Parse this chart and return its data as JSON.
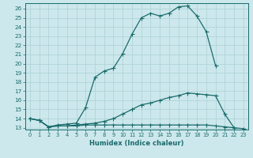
{
  "xlabel": "Humidex (Indice chaleur)",
  "bg_color": "#cce8ec",
  "grid_color": "#b0d4d8",
  "line_color": "#1a6b6b",
  "xlim": [
    -0.5,
    23.5
  ],
  "ylim": [
    12.8,
    26.6
  ],
  "xticks": [
    0,
    1,
    2,
    3,
    4,
    5,
    6,
    7,
    8,
    9,
    10,
    11,
    12,
    13,
    14,
    15,
    16,
    17,
    18,
    19,
    20,
    21,
    22,
    23
  ],
  "yticks": [
    13,
    14,
    15,
    16,
    17,
    18,
    19,
    20,
    21,
    22,
    23,
    24,
    25,
    26
  ],
  "line1_x": [
    0,
    1,
    2,
    3,
    4,
    5,
    6,
    7,
    8,
    9,
    10,
    11,
    12,
    13,
    14,
    15,
    16,
    17,
    18,
    19,
    20,
    21,
    22,
    23
  ],
  "line1_y": [
    14.0,
    13.8,
    13.1,
    13.3,
    13.4,
    13.5,
    15.2,
    18.5,
    19.2,
    19.5,
    21.1,
    23.2,
    25.0,
    25.5,
    25.2,
    25.5,
    26.2,
    26.3,
    25.2,
    23.5,
    19.8,
    null,
    null,
    null
  ],
  "line2_x": [
    0,
    1,
    2,
    3,
    4,
    5,
    6,
    7,
    8,
    9,
    10,
    11,
    12,
    13,
    14,
    15,
    16,
    17,
    18,
    19,
    20,
    21,
    22,
    23
  ],
  "line2_y": [
    14.0,
    13.8,
    13.1,
    13.2,
    13.2,
    13.3,
    13.4,
    13.5,
    13.7,
    14.0,
    14.5,
    15.0,
    15.5,
    15.7,
    16.0,
    16.3,
    16.5,
    16.8,
    16.7,
    16.6,
    16.5,
    14.5,
    13.0,
    null
  ],
  "line3_x": [
    0,
    1,
    2,
    3,
    4,
    5,
    6,
    7,
    8,
    9,
    10,
    11,
    12,
    13,
    14,
    15,
    16,
    17,
    18,
    19,
    20,
    21,
    22,
    23
  ],
  "line3_y": [
    14.0,
    13.8,
    13.1,
    13.2,
    13.2,
    13.2,
    13.3,
    13.3,
    13.3,
    13.3,
    13.3,
    13.3,
    13.3,
    13.3,
    13.3,
    13.3,
    13.3,
    13.3,
    13.3,
    13.3,
    13.2,
    13.1,
    13.0,
    12.9
  ]
}
